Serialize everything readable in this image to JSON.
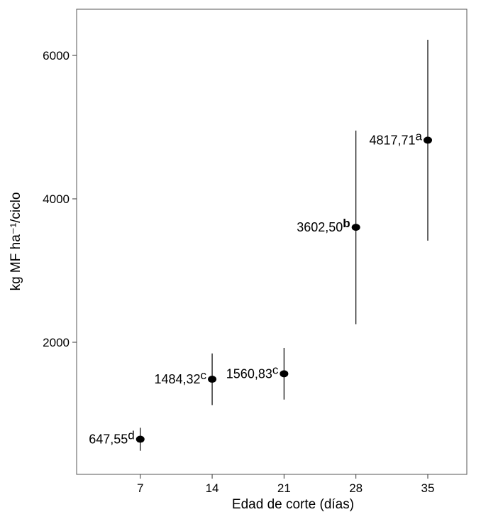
{
  "chart_data": {
    "type": "scatter",
    "x_label": "Edad de corte (días)",
    "y_label": "kg MF ha⁻¹/ciclo",
    "x": [
      7,
      14,
      21,
      28,
      35
    ],
    "values": [
      647.55,
      1484.32,
      1560.83,
      3602.5,
      4817.71
    ],
    "value_labels": [
      "647,55",
      "1484,32",
      "1560,83",
      "3602,50",
      "4817,71"
    ],
    "letters": [
      "d",
      "c",
      "c",
      "b",
      "a"
    ],
    "errors": [
      160,
      360,
      360,
      1350,
      1400
    ],
    "color": "#000000",
    "xlim": [
      0.8,
      38.8
    ],
    "xticks": [
      7,
      14,
      21,
      28,
      35
    ],
    "ylim": [
      158,
      6644
    ],
    "yticks": [
      2000,
      4000,
      6000
    ],
    "grid": false
  }
}
